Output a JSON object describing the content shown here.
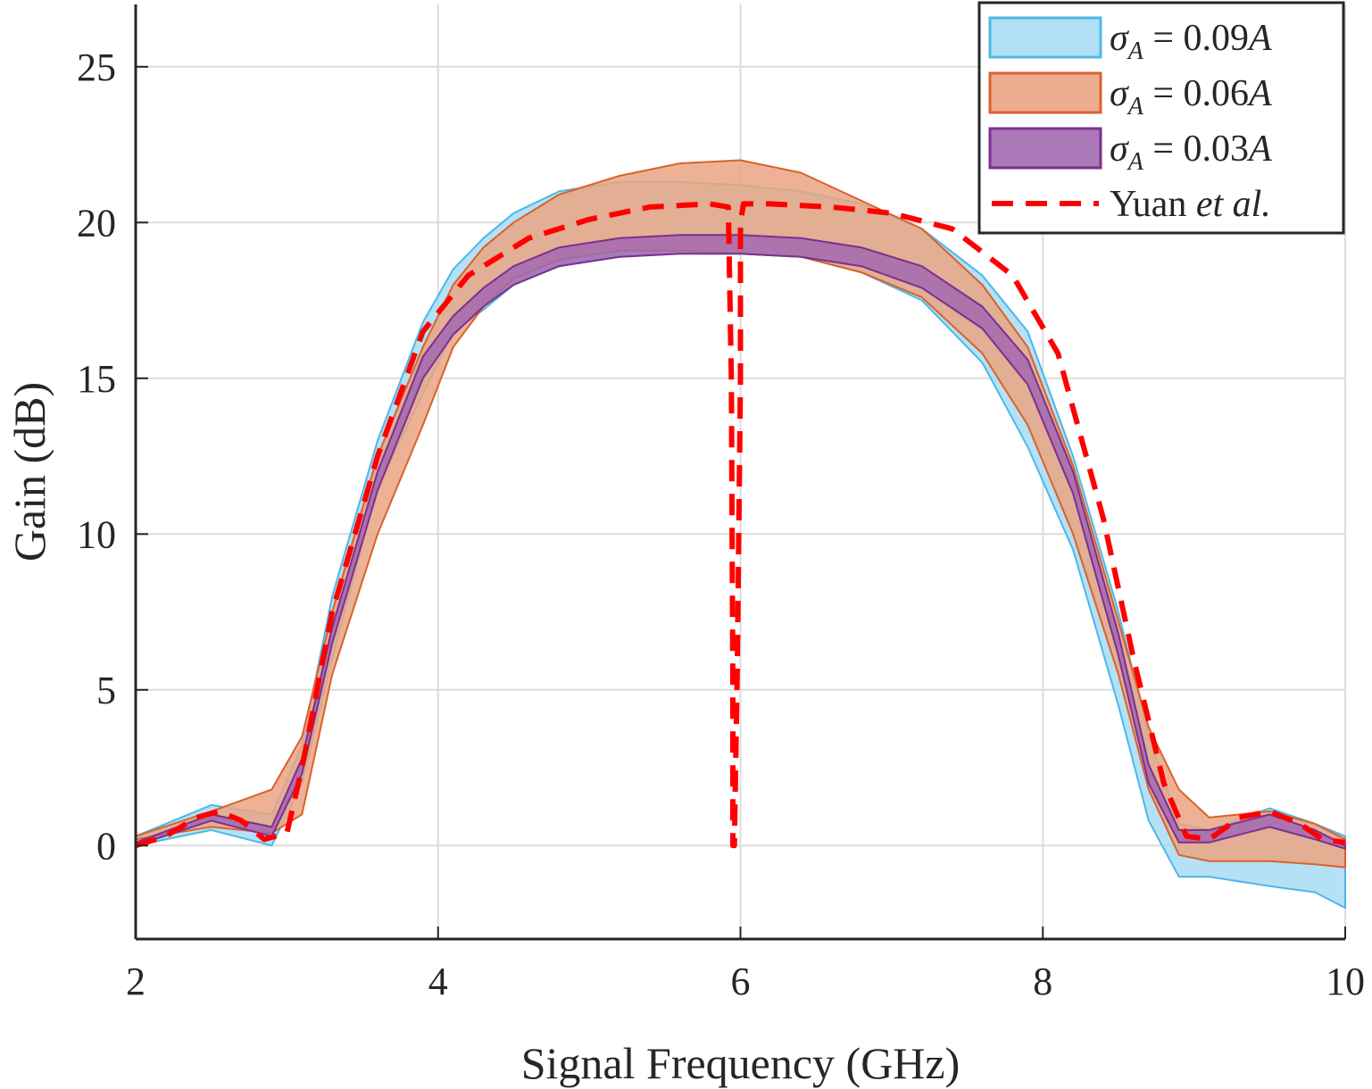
{
  "chart_data": {
    "type": "area",
    "title": "",
    "xlabel": "Signal Frequency (GHz)",
    "ylabel": "Gain (dB)",
    "xlim": [
      2,
      10
    ],
    "ylim": [
      -3,
      27
    ],
    "xticks": [
      "2",
      "4",
      "6",
      "8",
      "10"
    ],
    "yticks": [
      "0",
      "5",
      "10",
      "15",
      "20",
      "25"
    ],
    "grid": true,
    "legend_position": "top-right",
    "series": [
      {
        "name": "σ_A = 0.09A",
        "legend_sym": "σ",
        "legend_sub": "A",
        "legend_rest": " = 0.09",
        "legend_var": "A",
        "kind": "band",
        "fill": "#a8dcf5",
        "stroke": "#4db8e6",
        "x": [
          2.0,
          2.5,
          2.9,
          3.1,
          3.3,
          3.6,
          3.9,
          4.1,
          4.3,
          4.5,
          4.8,
          5.2,
          5.6,
          6.0,
          6.4,
          6.8,
          7.2,
          7.6,
          7.9,
          8.2,
          8.5,
          8.7,
          8.9,
          9.1,
          9.5,
          9.8,
          10.0
        ],
        "upper": [
          0.3,
          1.3,
          1.0,
          3.2,
          8.0,
          13.0,
          16.8,
          18.5,
          19.5,
          20.3,
          21.0,
          21.3,
          21.3,
          21.2,
          21.0,
          20.6,
          19.8,
          18.3,
          16.5,
          12.5,
          7.5,
          3.5,
          0.7,
          0.5,
          1.2,
          0.7,
          0.3
        ],
        "lower": [
          0.0,
          0.5,
          0.0,
          2.0,
          6.0,
          11.5,
          14.5,
          16.5,
          17.2,
          18.0,
          18.6,
          18.9,
          19.0,
          19.0,
          18.9,
          18.4,
          17.5,
          15.5,
          12.8,
          9.5,
          4.5,
          0.8,
          -1.0,
          -1.0,
          -1.3,
          -1.5,
          -2.0
        ]
      },
      {
        "name": "σ_A = 0.06A",
        "legend_sym": "σ",
        "legend_sub": "A",
        "legend_rest": " = 0.06",
        "legend_var": "A",
        "kind": "band",
        "fill": "#eaa482",
        "stroke": "#d9622b",
        "x": [
          2.0,
          2.5,
          2.9,
          3.1,
          3.3,
          3.6,
          3.9,
          4.1,
          4.3,
          4.5,
          4.8,
          5.2,
          5.6,
          6.0,
          6.4,
          6.8,
          7.2,
          7.6,
          7.9,
          8.2,
          8.5,
          8.7,
          8.9,
          9.1,
          9.5,
          9.8,
          10.0
        ],
        "upper": [
          0.3,
          1.1,
          1.8,
          3.5,
          7.5,
          12.5,
          16.0,
          18.0,
          19.2,
          20.0,
          20.9,
          21.5,
          21.9,
          22.0,
          21.6,
          20.7,
          19.8,
          18.0,
          16.0,
          12.2,
          7.2,
          3.8,
          1.8,
          0.9,
          1.1,
          0.7,
          0.2
        ],
        "lower": [
          0.2,
          0.6,
          0.4,
          1.0,
          5.5,
          10.0,
          13.5,
          16.0,
          17.3,
          18.2,
          18.8,
          19.1,
          19.1,
          19.0,
          18.9,
          18.4,
          17.6,
          15.8,
          13.5,
          10.0,
          5.5,
          1.8,
          -0.3,
          -0.5,
          -0.5,
          -0.6,
          -0.7
        ]
      },
      {
        "name": "σ_A = 0.03A",
        "legend_sym": "σ",
        "legend_sub": "A",
        "legend_rest": " = 0.03",
        "legend_var": "A",
        "kind": "band",
        "fill": "#a269b0",
        "stroke": "#7e2f8e",
        "x": [
          2.0,
          2.5,
          2.9,
          3.1,
          3.3,
          3.6,
          3.9,
          4.1,
          4.3,
          4.5,
          4.8,
          5.2,
          5.6,
          6.0,
          6.4,
          6.8,
          7.2,
          7.6,
          7.9,
          8.2,
          8.5,
          8.7,
          8.9,
          9.1,
          9.5,
          9.8,
          10.0
        ],
        "upper": [
          0.1,
          1.0,
          0.6,
          2.8,
          7.0,
          12.0,
          15.7,
          17.0,
          17.9,
          18.6,
          19.2,
          19.5,
          19.6,
          19.6,
          19.5,
          19.2,
          18.6,
          17.3,
          15.6,
          12.0,
          6.8,
          2.6,
          0.5,
          0.5,
          1.0,
          0.5,
          0.0
        ],
        "lower": [
          0.0,
          0.8,
          0.3,
          2.3,
          6.5,
          11.4,
          15.0,
          16.4,
          17.3,
          18.0,
          18.6,
          18.9,
          19.0,
          19.0,
          18.9,
          18.6,
          17.9,
          16.6,
          14.8,
          11.3,
          6.1,
          2.0,
          0.1,
          0.1,
          0.6,
          0.2,
          -0.1
        ]
      },
      {
        "name": "Yuan et al.",
        "legend_main": "Yuan ",
        "legend_italic": "et al.",
        "kind": "line",
        "stroke": "#ff0000",
        "dashed": true,
        "x": [
          2.0,
          2.2,
          2.4,
          2.55,
          2.7,
          2.85,
          3.0,
          3.1,
          3.3,
          3.6,
          3.9,
          4.2,
          4.6,
          5.0,
          5.4,
          5.8,
          5.92,
          5.94,
          5.95,
          5.95,
          5.96,
          5.98,
          6.0,
          6.0,
          6.02,
          6.2,
          6.6,
          7.0,
          7.4,
          7.8,
          8.1,
          8.4,
          8.6,
          8.8,
          8.95,
          9.1,
          9.3,
          9.5,
          9.7,
          9.85,
          10.0
        ],
        "y": [
          0.0,
          0.3,
          0.9,
          1.1,
          0.8,
          0.2,
          0.4,
          2.5,
          7.5,
          12.5,
          16.5,
          18.3,
          19.5,
          20.1,
          20.5,
          20.6,
          20.5,
          15.0,
          5.0,
          0.0,
          0.0,
          6.0,
          15.0,
          20.0,
          20.6,
          20.6,
          20.5,
          20.3,
          19.8,
          18.3,
          15.8,
          10.5,
          6.0,
          2.0,
          0.3,
          0.2,
          0.9,
          1.1,
          0.7,
          0.2,
          0.1
        ]
      }
    ]
  }
}
